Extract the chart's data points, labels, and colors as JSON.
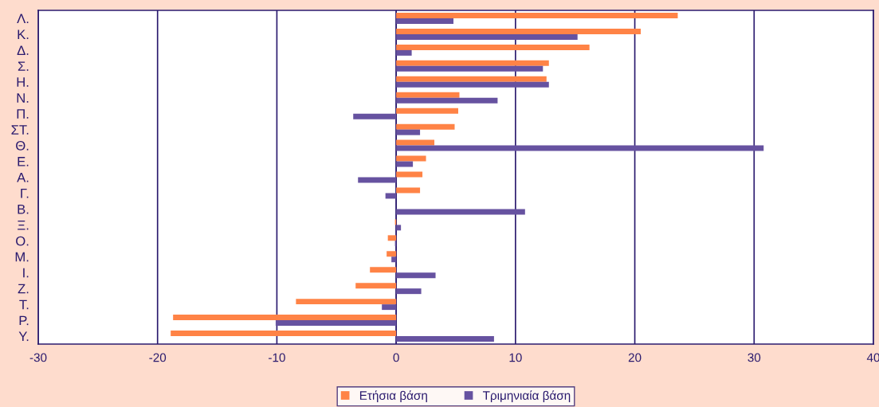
{
  "chart_data": {
    "type": "bar",
    "orientation": "horizontal",
    "categories": [
      "Λ.",
      "Κ.",
      "Δ.",
      "Σ.",
      "Η.",
      "Ν.",
      "Π.",
      "ΣΤ.",
      "Θ.",
      "Ε.",
      "Α.",
      "Γ.",
      "Β.",
      "Ξ.",
      "Ο.",
      "Μ.",
      "Ι.",
      "Ζ.",
      "Τ.",
      "Ρ.",
      "Υ."
    ],
    "series": [
      {
        "name": "Ετήσια βάση",
        "color": "#ff8346",
        "values": [
          23.6,
          20.5,
          16.2,
          12.8,
          12.6,
          5.3,
          5.2,
          4.9,
          3.2,
          2.5,
          2.2,
          2.0,
          0,
          -0.1,
          -0.7,
          -0.8,
          -2.2,
          -3.4,
          -8.4,
          -18.7,
          -18.9
        ]
      },
      {
        "name": "Τριμηνιαία βάση",
        "color": "#6652a0",
        "values": [
          4.8,
          15.2,
          1.3,
          12.3,
          12.8,
          8.5,
          -3.6,
          2.0,
          30.8,
          1.4,
          -3.2,
          -0.9,
          10.8,
          0.4,
          -0.1,
          -0.4,
          3.3,
          2.1,
          -1.2,
          -10.1,
          8.2
        ]
      }
    ],
    "xlim": [
      -30,
      40
    ],
    "xticks": [
      -30,
      -20,
      -10,
      0,
      10,
      20,
      30,
      40
    ],
    "grid": "x",
    "legend": "bottom"
  }
}
